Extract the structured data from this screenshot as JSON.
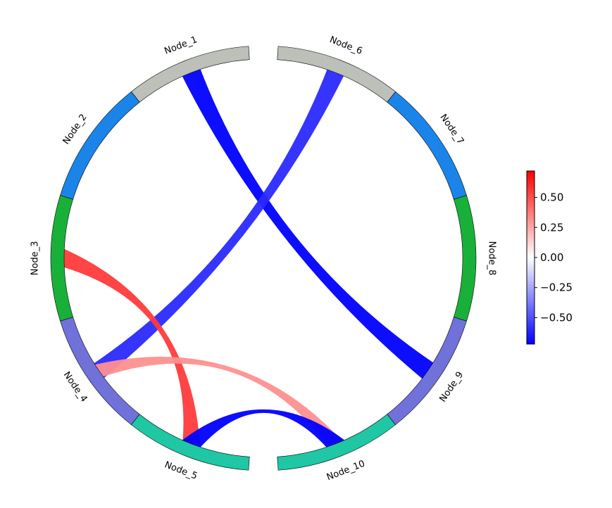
{
  "diagram": {
    "type": "chord",
    "nodes": [
      {
        "id": "Node_1",
        "label": "Node_1",
        "color": "#bcc0b8"
      },
      {
        "id": "Node_2",
        "label": "Node_2",
        "color": "#1b84e9"
      },
      {
        "id": "Node_3",
        "label": "Node_3",
        "color": "#19b03a"
      },
      {
        "id": "Node_4",
        "label": "Node_4",
        "color": "#7072d9"
      },
      {
        "id": "Node_5",
        "label": "Node_5",
        "color": "#1fc7a4"
      },
      {
        "id": "Node_6",
        "label": "Node_6",
        "color": "#bcc0b8"
      },
      {
        "id": "Node_7",
        "label": "Node_7",
        "color": "#1b84e9"
      },
      {
        "id": "Node_8",
        "label": "Node_8",
        "color": "#19b03a"
      },
      {
        "id": "Node_9",
        "label": "Node_9",
        "color": "#7072d9"
      },
      {
        "id": "Node_10",
        "label": "Node_10",
        "color": "#1fc7a4"
      }
    ],
    "links": [
      {
        "source": "Node_1",
        "target": "Node_9",
        "value": -0.72,
        "color": "#0000ff"
      },
      {
        "source": "Node_6",
        "target": "Node_4",
        "value": -0.62,
        "color": "#2a2aff"
      },
      {
        "source": "Node_3",
        "target": "Node_5",
        "value": 0.66,
        "color": "#ff3b3b"
      },
      {
        "source": "Node_4",
        "target": "Node_10",
        "value": 0.42,
        "color": "#ff9090"
      },
      {
        "source": "Node_5",
        "target": "Node_10",
        "value": -0.72,
        "color": "#0000ff"
      }
    ],
    "colorbar": {
      "min": -0.72,
      "max": 0.72,
      "ticks": [
        {
          "value": 0.5,
          "label": "0.50"
        },
        {
          "value": 0.25,
          "label": "0.25"
        },
        {
          "value": 0.0,
          "label": "0.00"
        },
        {
          "value": -0.25,
          "label": "−0.25"
        },
        {
          "value": -0.5,
          "label": "−0.50"
        }
      ],
      "colors": [
        "#0000ff",
        "#ffffff",
        "#ff0000"
      ]
    }
  }
}
